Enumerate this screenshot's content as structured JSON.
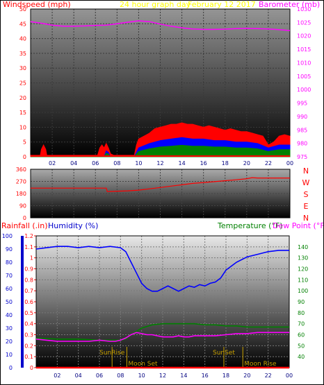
{
  "chart_data": [
    {
      "type": "line",
      "title": "24 hour graph day",
      "subtitle": "February 12 2017",
      "ylabel_left": "Windspeed (mph)",
      "ylabel_right": "Barometer (mb)",
      "ylim_left": [
        0,
        50
      ],
      "ylim_right": [
        975,
        1030
      ],
      "yticks_left": [
        "0",
        "5",
        "10",
        "15",
        "20",
        "25",
        "30",
        "35",
        "40",
        "45",
        "50"
      ],
      "yticks_right": [
        "975",
        "980",
        "985",
        "990",
        "995",
        "1000",
        "1005",
        "1010",
        "1015",
        "1020",
        "1025",
        "1030"
      ],
      "xticks": [
        "02",
        "04",
        "06",
        "08",
        "10",
        "12",
        "14",
        "16",
        "18",
        "20",
        "22",
        "00"
      ],
      "xlim": [
        0,
        24
      ],
      "colors": {
        "barometer": "#ff00ff",
        "gust": "#ff0000",
        "avg_wind": "#0000ff",
        "wind_low": "#008000",
        "axis_left": "#ff0000",
        "axis_right": "#ff00ff",
        "title": "#ffff00"
      },
      "series": [
        {
          "name": "Barometer",
          "axis": "right",
          "x": [
            0,
            1,
            2,
            3,
            4,
            5,
            6,
            7,
            8,
            9,
            10,
            11,
            12,
            13,
            14,
            15,
            16,
            17,
            18,
            19,
            20,
            21,
            22,
            23,
            24
          ],
          "values": [
            1025.3,
            1024.7,
            1024.0,
            1023.6,
            1023.6,
            1023.7,
            1023.9,
            1024.0,
            1024.5,
            1025.1,
            1025.6,
            1025.3,
            1024.4,
            1023.6,
            1023.0,
            1022.6,
            1022.4,
            1022.4,
            1022.5,
            1022.7,
            1022.8,
            1022.7,
            1022.6,
            1022.3,
            1022.0
          ]
        },
        {
          "name": "Gust",
          "axis": "left",
          "x": [
            0,
            0.9,
            1.0,
            1.2,
            1.4,
            1.5,
            6.2,
            6.4,
            6.6,
            6.8,
            7.0,
            7.2,
            7.4,
            7.7,
            9.6,
            9.8,
            10,
            10.5,
            11,
            11.5,
            12,
            12.5,
            13,
            13.5,
            14,
            14.5,
            15,
            15.5,
            16,
            16.5,
            17,
            17.5,
            18,
            18.5,
            19,
            19.5,
            20,
            20.5,
            21,
            21.5,
            22,
            22.5,
            23,
            23.5,
            24
          ],
          "values": [
            0.5,
            0.5,
            2.5,
            4,
            2.5,
            0.5,
            0.5,
            3,
            4,
            3,
            4.5,
            3,
            1,
            0.5,
            0.5,
            4,
            6,
            7,
            8,
            9.5,
            10,
            10.5,
            11,
            11,
            11.5,
            11,
            11,
            10.5,
            10,
            10.5,
            10,
            9.5,
            9,
            9.5,
            9,
            8.5,
            8.5,
            8,
            7.5,
            7,
            4,
            5,
            7,
            7.5,
            7
          ]
        },
        {
          "name": "Average wind",
          "axis": "left",
          "x": [
            0,
            6.8,
            7.0,
            7.2,
            7.4,
            9.6,
            10,
            11,
            12,
            13,
            14,
            15,
            16,
            17,
            18,
            19,
            20,
            21,
            22,
            23,
            24
          ],
          "values": [
            0,
            0,
            2,
            1.5,
            0,
            0,
            3,
            4.5,
            5.5,
            6,
            6.5,
            6,
            6,
            5.5,
            5.5,
            5,
            5,
            4.5,
            3,
            4,
            4
          ]
        }
      ]
    },
    {
      "type": "line",
      "ylabel_right_letters": [
        "N",
        "W",
        "S",
        "E",
        "N"
      ],
      "ylim": [
        0,
        360
      ],
      "yticks": [
        "0",
        "90",
        "180",
        "270",
        "360"
      ],
      "xlim": [
        0,
        24
      ],
      "series": [
        {
          "name": "Wind direction",
          "x": [
            0,
            2,
            4,
            6,
            7.0,
            7.1,
            9,
            10,
            11,
            12,
            13,
            14,
            15,
            16,
            17,
            18,
            19,
            20,
            20.5,
            21,
            22,
            23,
            24
          ],
          "values": [
            220,
            220,
            220,
            220,
            220,
            195,
            200,
            205,
            215,
            225,
            235,
            245,
            255,
            262,
            268,
            275,
            282,
            290,
            298,
            295,
            295,
            295,
            295
          ]
        }
      ]
    },
    {
      "type": "line",
      "ylabel_left_1": "Rainfall (.in)",
      "ylabel_left_2": "Humidity (%)",
      "ylabel_right_1": "Temperature (°F)",
      "ylabel_right_2": "Dew Point (°F)",
      "ylim_humidity": [
        0,
        100
      ],
      "ylim_rain": [
        0,
        1.2
      ],
      "ylim_temp": [
        30,
        150
      ],
      "yticks_humidity": [
        "0",
        "10",
        "20",
        "30",
        "40",
        "50",
        "60",
        "70",
        "80",
        "90",
        "100"
      ],
      "yticks_rain": [
        "0",
        "0.1",
        "0.2",
        "0.3",
        "0.4",
        "0.5",
        "0.6",
        "0.7",
        "0.8",
        "0.9",
        "1",
        "1.1",
        "1.2"
      ],
      "yticks_temp": [
        "40",
        "50",
        "60",
        "70",
        "80",
        "90",
        "100",
        "110",
        "120",
        "130",
        "140"
      ],
      "xticks": [
        "02",
        "04",
        "06",
        "08",
        "10",
        "12",
        "14",
        "16",
        "18",
        "20",
        "22",
        "00"
      ],
      "xlim": [
        0,
        24
      ],
      "annotations": [
        {
          "label": "SunRise",
          "x": 7.2
        },
        {
          "label": "Moon Set",
          "x": 8.6
        },
        {
          "label": "SunSet",
          "x": 17.8
        },
        {
          "label": "Moon Rise",
          "x": 19.6
        }
      ],
      "series": [
        {
          "name": "Humidity",
          "axis": "humidity",
          "x": [
            0,
            1,
            2,
            3,
            4,
            5,
            6,
            7,
            8,
            8.5,
            9,
            9.5,
            10,
            10.5,
            11,
            11.5,
            12,
            12.5,
            13,
            13.5,
            14,
            14.5,
            15,
            15.5,
            16,
            16.5,
            17,
            17.5,
            18,
            19,
            20,
            21,
            22,
            23,
            24
          ],
          "values": [
            90,
            91,
            92,
            92,
            91,
            92,
            91,
            92,
            91,
            88,
            80,
            72,
            64,
            60,
            58,
            58,
            60,
            62,
            60,
            58,
            60,
            62,
            61,
            63,
            62,
            64,
            65,
            68,
            74,
            80,
            84,
            86,
            88,
            89,
            89
          ]
        },
        {
          "name": "Temperature",
          "axis": "temp",
          "x": [
            0,
            2,
            4,
            6,
            7,
            8,
            8.5,
            9,
            10,
            11,
            12,
            13,
            14,
            15,
            16,
            17,
            18,
            19,
            20,
            22,
            24
          ],
          "values": [
            57,
            56,
            56,
            55,
            55,
            55,
            56,
            60,
            66,
            69,
            70,
            70,
            70,
            70,
            69,
            69,
            68,
            68,
            67,
            67,
            67
          ]
        },
        {
          "name": "Dew Point",
          "axis": "temp",
          "x": [
            0,
            1,
            2,
            3,
            4,
            5,
            6,
            7,
            7.5,
            8,
            8.5,
            9,
            9.5,
            10,
            10.5,
            11,
            11.5,
            12,
            12.5,
            13,
            13.5,
            14,
            14.5,
            15,
            16,
            17,
            18,
            19,
            20,
            21,
            22,
            23,
            24
          ],
          "values": [
            56,
            55,
            54,
            54,
            54,
            54,
            55,
            54,
            54,
            55,
            57,
            60,
            62,
            61,
            60,
            60,
            59,
            58,
            58,
            58,
            59,
            58,
            58,
            59,
            59,
            59,
            60,
            61,
            61,
            62,
            62,
            62,
            62
          ]
        },
        {
          "name": "Rainfall",
          "axis": "rain",
          "x": [
            0,
            24
          ],
          "values": [
            0,
            0
          ]
        }
      ]
    }
  ]
}
